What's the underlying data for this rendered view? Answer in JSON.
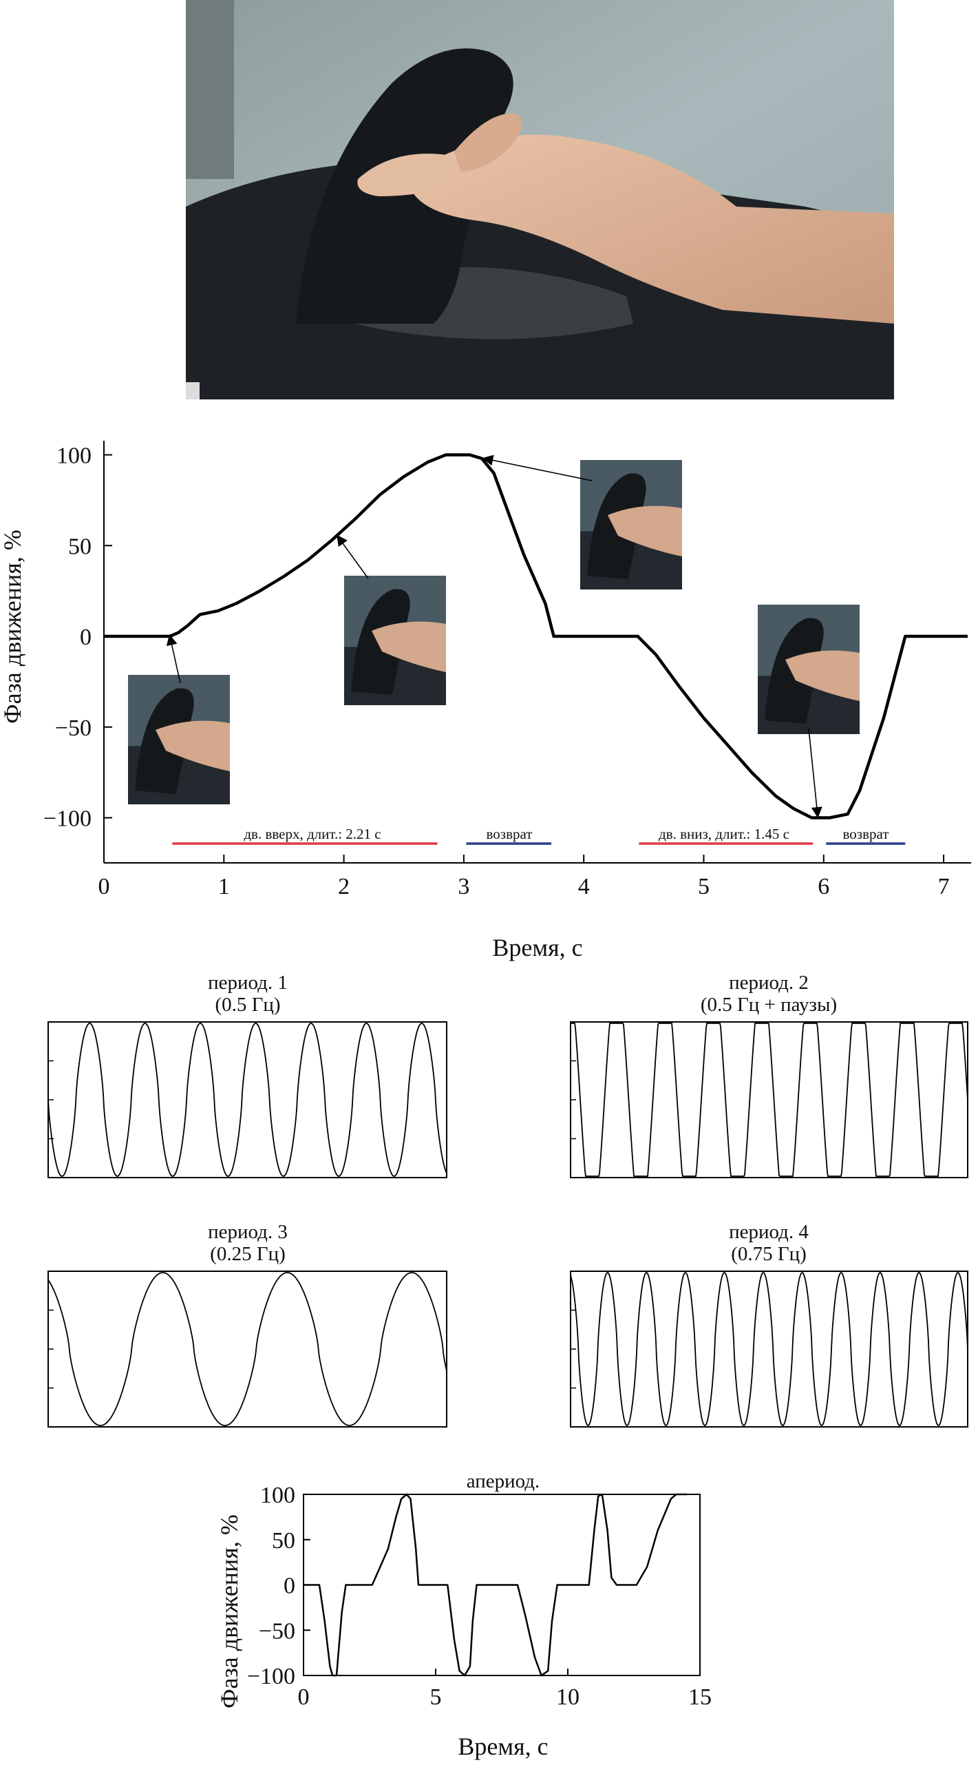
{
  "photo_icon": "hand-on-vertical-joystick",
  "colors": {
    "curve": "#000000",
    "up_bar": "#e03a44",
    "return_bar": "#2c3e8c",
    "axis": "#000000"
  },
  "main": {
    "ylabel": "Фаза движения, %",
    "xlabel": "Время, с",
    "annotations": {
      "up": "дв. вверх, длит.: 2.21 с",
      "return1": "возврат",
      "down": "дв. вниз, длит.: 1.45 с",
      "return2": "возврат"
    }
  },
  "panels": {
    "p1": {
      "title1": "период. 1",
      "title2": "(0.5 Гц)"
    },
    "p2": {
      "title1": "период. 2",
      "title2": "(0.5 Гц + паузы)"
    },
    "p3": {
      "title1": "период. 3",
      "title2": "(0.25 Гц)"
    },
    "p4": {
      "title1": "период. 4",
      "title2": "(0.75 Гц)"
    }
  },
  "aperiodic": {
    "title": "апериод.",
    "ylabel": "Фаза движения, %",
    "xlabel": "Время, с"
  },
  "chart_data": [
    {
      "type": "line",
      "xlim": [
        0,
        7.2
      ],
      "ylim": [
        -125,
        105
      ],
      "xticks": [
        0,
        1,
        2,
        3,
        4,
        5,
        6,
        7
      ],
      "yticks": [
        -100,
        -50,
        0,
        50,
        100
      ],
      "series": [
        {
          "x": [
            0,
            0.55,
            0.62,
            0.7,
            0.8,
            0.95,
            1.1,
            1.3,
            1.5,
            1.7,
            1.9,
            2.1,
            2.3,
            2.5,
            2.7,
            2.85,
            3.05,
            3.15,
            3.25,
            3.35,
            3.5,
            3.6,
            3.68,
            3.75,
            4.45,
            4.6,
            4.8,
            5.0,
            5.2,
            5.4,
            5.6,
            5.75,
            5.9,
            6.05,
            6.2,
            6.3,
            6.4,
            6.5,
            6.6,
            6.68,
            7.2
          ],
          "y": [
            0,
            0,
            2,
            6,
            12,
            14,
            18,
            25,
            33,
            42,
            53,
            65,
            78,
            88,
            96,
            100,
            100,
            98,
            90,
            72,
            45,
            30,
            18,
            0,
            0,
            -10,
            -28,
            -45,
            -60,
            -75,
            -88,
            -95,
            -100,
            -100,
            -98,
            -85,
            -65,
            -45,
            -20,
            0,
            0
          ]
        }
      ],
      "annotations": [
        {
          "text": "дв. вверх, длит.: 2.21 с",
          "x_range": [
            0.57,
            2.78
          ],
          "color": "red"
        },
        {
          "text": "возврат",
          "x_range": [
            3.02,
            3.73
          ],
          "color": "blue"
        },
        {
          "text": "дв. вниз, длит.: 1.45 с",
          "x_range": [
            4.46,
            5.91
          ],
          "color": "red"
        },
        {
          "text": "возврат",
          "x_range": [
            6.02,
            6.68
          ],
          "color": "blue"
        }
      ]
    },
    {
      "type": "line",
      "freq_hz": 0.5,
      "pauses": false,
      "peaks": 7
    },
    {
      "type": "line",
      "freq_hz": 0.5,
      "pauses": true,
      "peaks": 8
    },
    {
      "type": "line",
      "freq_hz": 0.25,
      "pauses": false,
      "peaks": 3
    },
    {
      "type": "line",
      "freq_hz": 0.75,
      "pauses": false,
      "peaks": 10
    },
    {
      "type": "line",
      "xlim": [
        0,
        15
      ],
      "ylim": [
        -100,
        100
      ],
      "xticks": [
        0,
        5,
        10,
        15
      ],
      "yticks": [
        -100,
        -50,
        0,
        50,
        100
      ],
      "series": [
        {
          "x": [
            0,
            0.6,
            0.8,
            1.0,
            1.1,
            1.25,
            1.45,
            1.6,
            2.6,
            2.9,
            3.2,
            3.5,
            3.7,
            3.9,
            4.05,
            4.25,
            4.35,
            5.45,
            5.7,
            5.9,
            6.1,
            6.3,
            6.4,
            6.55,
            8.1,
            8.4,
            8.75,
            9.0,
            9.25,
            9.4,
            9.6,
            10.8,
            11.0,
            11.15,
            11.3,
            11.5,
            11.65,
            11.85,
            12.6,
            13.0,
            13.4,
            13.9,
            14.1,
            14.5
          ],
          "y": [
            0,
            0,
            -40,
            -90,
            -100,
            -100,
            -30,
            0,
            0,
            20,
            40,
            75,
            95,
            100,
            95,
            40,
            0,
            0,
            -60,
            -95,
            -100,
            -90,
            -40,
            0,
            0,
            -35,
            -80,
            -100,
            -95,
            -40,
            0,
            0,
            60,
            98,
            100,
            60,
            8,
            0,
            0,
            20,
            60,
            95,
            100,
            100
          ]
        }
      ]
    }
  ]
}
